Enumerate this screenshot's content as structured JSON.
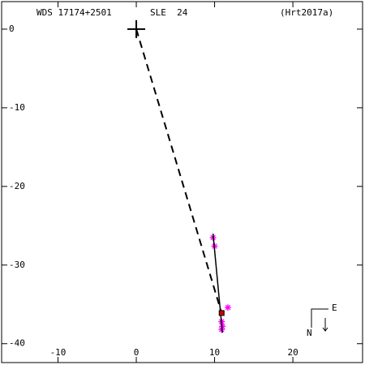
{
  "chart_data": {
    "type": "scatter",
    "title": "WDS 17174+2501",
    "subtitle": "SLE  24",
    "reference": "(Hrt2017a)",
    "compass": {
      "east": "E",
      "north": "N"
    },
    "xlim": [
      -17.2,
      28.9
    ],
    "ylim": [
      -42.4,
      3.5
    ],
    "xticks": [
      -10,
      0,
      10,
      20
    ],
    "yticks": [
      0,
      -10,
      -20,
      -30,
      -40
    ],
    "series": [
      {
        "color": "#ff00ff",
        "marker": "*",
        "line": "none",
        "x": [
          9.8,
          10.0,
          11.7,
          10.9,
          11.0,
          10.9
        ],
        "values": [
          -26.5,
          -27.6,
          -35.4,
          -37.2,
          -37.8,
          -38.2
        ]
      },
      {
        "color": "#000000",
        "marker": "+",
        "line": "none",
        "x": [
          0
        ],
        "values": [
          0
        ]
      },
      {
        "color": "#000000",
        "marker": "none",
        "line": "dashed",
        "x": [
          0,
          10.9
        ],
        "values": [
          0,
          -36.1
        ]
      },
      {
        "color": "#000000",
        "marker": "none",
        "line": "solid",
        "x": [
          9.8,
          11.0
        ],
        "values": [
          -26.0,
          -38.6
        ]
      },
      {
        "color": "#cc0000",
        "marker": "square",
        "line": "none",
        "x": [
          10.9
        ],
        "values": [
          -36.1
        ]
      }
    ]
  }
}
